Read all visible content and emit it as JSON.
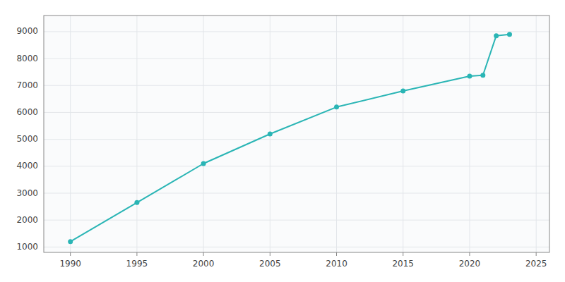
{
  "chart_data": {
    "type": "line",
    "x": [
      1990,
      1995,
      2000,
      2005,
      2010,
      2015,
      2020,
      2021,
      2022,
      2023
    ],
    "values": [
      1200,
      2650,
      4100,
      5200,
      6200,
      6800,
      7350,
      7380,
      8850,
      8900
    ],
    "color": "#2ab5b5",
    "marker": "circle",
    "xlim": [
      1988,
      2026
    ],
    "ylim": [
      800,
      9600
    ],
    "xticks": [
      1990,
      1995,
      2000,
      2005,
      2010,
      2015,
      2020,
      2025
    ],
    "yticks": [
      1000,
      2000,
      3000,
      4000,
      5000,
      6000,
      7000,
      8000,
      9000
    ],
    "grid": true
  }
}
